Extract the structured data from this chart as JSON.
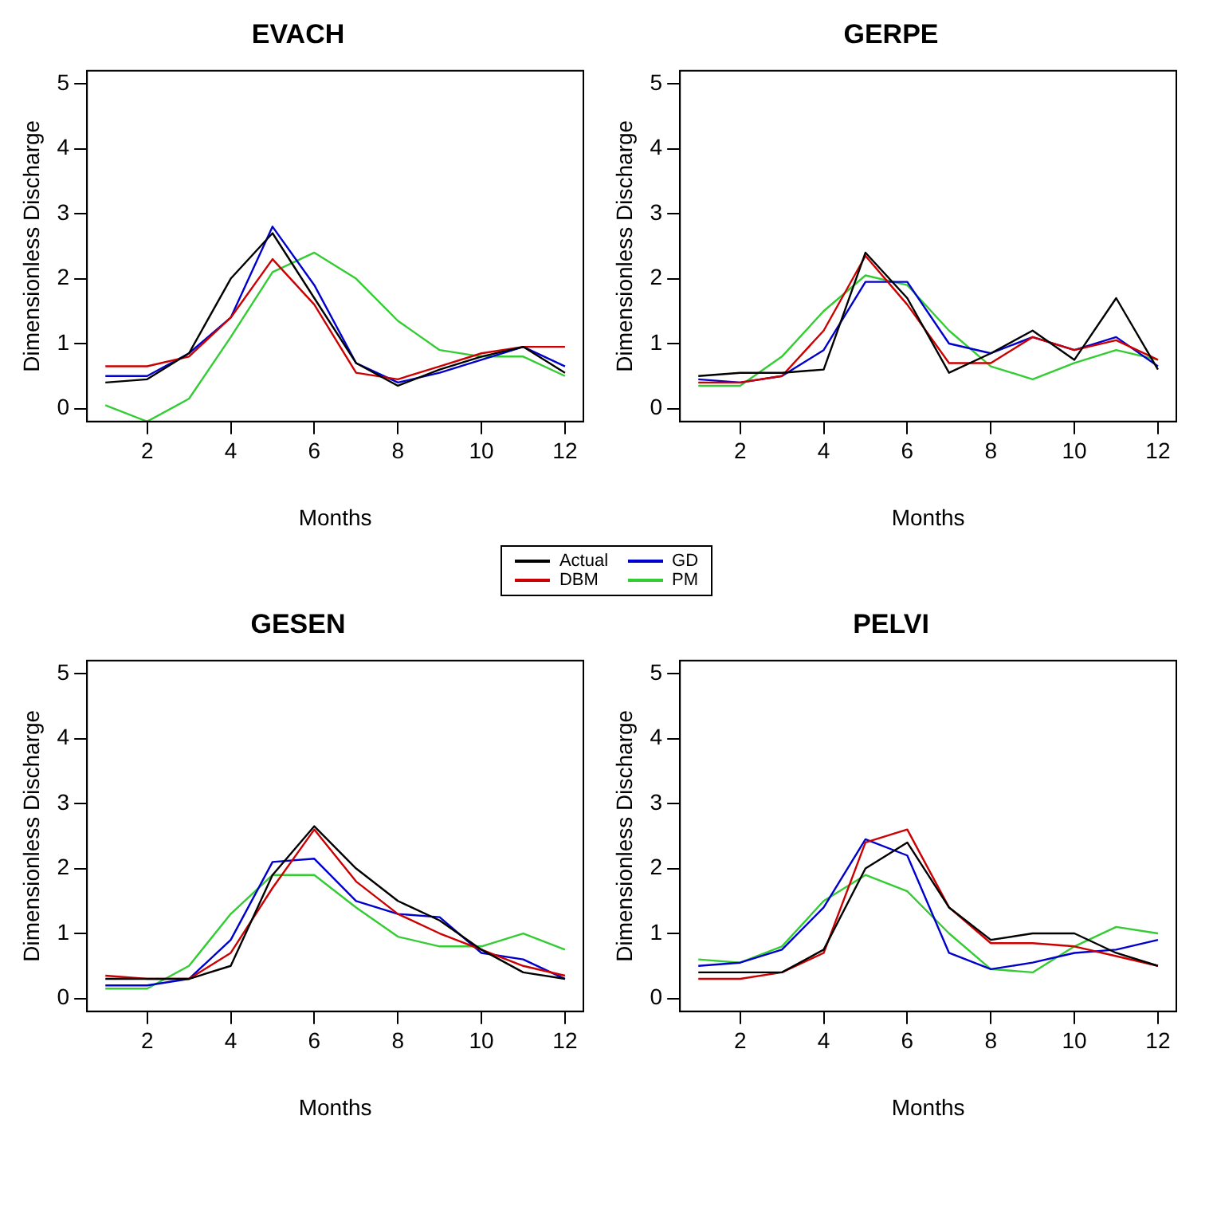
{
  "chart_data": [
    {
      "type": "line",
      "title": "EVACH",
      "xlabel": "Months",
      "ylabel": "Dimensionless Discharge",
      "x": [
        1,
        2,
        3,
        4,
        5,
        6,
        7,
        8,
        9,
        10,
        11,
        12
      ],
      "xlim": [
        0.56,
        12.44
      ],
      "xticks": [
        2,
        4,
        6,
        8,
        10,
        12
      ],
      "ylim": [
        -0.2,
        5.2
      ],
      "yticks": [
        0,
        1,
        2,
        3,
        4,
        5
      ],
      "grid": false,
      "legend": "bottom",
      "marker": "none",
      "line_style": "solid",
      "series": [
        {
          "name": "Actual",
          "color": "#000000",
          "values": [
            0.4,
            0.45,
            0.85,
            2.0,
            2.7,
            1.7,
            0.7,
            0.35,
            0.6,
            0.8,
            0.95,
            0.55
          ]
        },
        {
          "name": "DBM",
          "color": "#cc0000",
          "values": [
            0.65,
            0.65,
            0.8,
            1.4,
            2.3,
            1.6,
            0.55,
            0.45,
            0.65,
            0.85,
            0.95,
            0.95
          ]
        },
        {
          "name": "GD",
          "color": "#0000cc",
          "values": [
            0.5,
            0.5,
            0.85,
            1.4,
            2.8,
            1.9,
            0.7,
            0.4,
            0.55,
            0.75,
            0.95,
            0.65
          ]
        },
        {
          "name": "PM",
          "color": "#33cc33",
          "values": [
            0.05,
            -0.2,
            0.15,
            1.1,
            2.1,
            2.4,
            2.0,
            1.35,
            0.9,
            0.8,
            0.8,
            0.5
          ]
        }
      ]
    },
    {
      "type": "line",
      "title": "GERPE",
      "xlabel": "Months",
      "ylabel": "Dimensionless Discharge",
      "x": [
        1,
        2,
        3,
        4,
        5,
        6,
        7,
        8,
        9,
        10,
        11,
        12
      ],
      "xlim": [
        0.56,
        12.44
      ],
      "xticks": [
        2,
        4,
        6,
        8,
        10,
        12
      ],
      "ylim": [
        -0.2,
        5.2
      ],
      "yticks": [
        0,
        1,
        2,
        3,
        4,
        5
      ],
      "grid": false,
      "marker": "none",
      "line_style": "solid",
      "series": [
        {
          "color": "#000000",
          "values": [
            0.5,
            0.55,
            0.55,
            0.6,
            2.4,
            1.7,
            0.55,
            0.85,
            1.2,
            0.75,
            1.7,
            0.6
          ]
        },
        {
          "color": "#cc0000",
          "values": [
            0.4,
            0.4,
            0.5,
            1.2,
            2.35,
            1.6,
            0.7,
            0.7,
            1.1,
            0.9,
            1.05,
            0.75
          ]
        },
        {
          "color": "#0000cc",
          "values": [
            0.45,
            0.4,
            0.5,
            0.9,
            1.95,
            1.95,
            1.0,
            0.85,
            1.1,
            0.9,
            1.1,
            0.65
          ]
        },
        {
          "color": "#33cc33",
          "values": [
            0.35,
            0.35,
            0.8,
            1.5,
            2.05,
            1.9,
            1.2,
            0.65,
            0.45,
            0.7,
            0.9,
            0.75
          ]
        }
      ]
    },
    {
      "type": "line",
      "title": "GESEN",
      "xlabel": "Months",
      "ylabel": "Dimensionless Discharge",
      "x": [
        1,
        2,
        3,
        4,
        5,
        6,
        7,
        8,
        9,
        10,
        11,
        12
      ],
      "xlim": [
        0.56,
        12.44
      ],
      "xticks": [
        2,
        4,
        6,
        8,
        10,
        12
      ],
      "ylim": [
        -0.2,
        5.2
      ],
      "yticks": [
        0,
        1,
        2,
        3,
        4,
        5
      ],
      "grid": false,
      "marker": "none",
      "line_style": "solid",
      "series": [
        {
          "color": "#000000",
          "values": [
            0.3,
            0.3,
            0.3,
            0.5,
            1.9,
            2.65,
            2.0,
            1.5,
            1.2,
            0.75,
            0.4,
            0.3
          ]
        },
        {
          "color": "#cc0000",
          "values": [
            0.35,
            0.3,
            0.3,
            0.7,
            1.7,
            2.6,
            1.8,
            1.3,
            1.0,
            0.75,
            0.5,
            0.35
          ]
        },
        {
          "color": "#0000cc",
          "values": [
            0.2,
            0.2,
            0.3,
            0.9,
            2.1,
            2.15,
            1.5,
            1.3,
            1.25,
            0.7,
            0.6,
            0.3
          ]
        },
        {
          "color": "#33cc33",
          "values": [
            0.15,
            0.15,
            0.5,
            1.3,
            1.9,
            1.9,
            1.4,
            0.95,
            0.8,
            0.8,
            1.0,
            0.75
          ]
        }
      ]
    },
    {
      "type": "line",
      "title": "PELVI",
      "xlabel": "Months",
      "ylabel": "Dimensionless Discharge",
      "x": [
        1,
        2,
        3,
        4,
        5,
        6,
        7,
        8,
        9,
        10,
        11,
        12
      ],
      "xlim": [
        0.56,
        12.44
      ],
      "xticks": [
        2,
        4,
        6,
        8,
        10,
        12
      ],
      "ylim": [
        -0.2,
        5.2
      ],
      "yticks": [
        0,
        1,
        2,
        3,
        4,
        5
      ],
      "grid": false,
      "marker": "none",
      "line_style": "solid",
      "series": [
        {
          "color": "#000000",
          "values": [
            0.4,
            0.4,
            0.4,
            0.75,
            2.0,
            2.4,
            1.4,
            0.9,
            1.0,
            1.0,
            0.7,
            0.5
          ]
        },
        {
          "color": "#cc0000",
          "values": [
            0.3,
            0.3,
            0.4,
            0.7,
            2.4,
            2.6,
            1.4,
            0.85,
            0.85,
            0.8,
            0.65,
            0.5
          ]
        },
        {
          "color": "#0000cc",
          "values": [
            0.5,
            0.55,
            0.75,
            1.4,
            2.45,
            2.2,
            0.7,
            0.45,
            0.55,
            0.7,
            0.75,
            0.9
          ]
        },
        {
          "color": "#33cc33",
          "values": [
            0.6,
            0.55,
            0.8,
            1.5,
            1.9,
            1.65,
            1.0,
            0.45,
            0.4,
            0.8,
            1.1,
            1.0
          ]
        }
      ]
    }
  ]
}
